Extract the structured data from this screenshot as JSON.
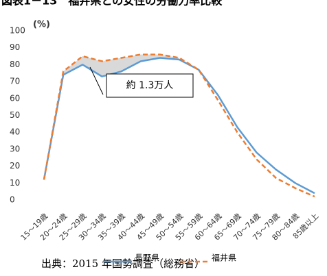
{
  "chart_data": {
    "type": "line",
    "title": "図表1－13　福井県との女性の労働力率比較",
    "y_label": "(%)",
    "source": "出典：2015 年国勢調査（総務省）",
    "annotation": "約 1.3万人",
    "categories": [
      "15～19歳",
      "20～24歳",
      "25～29歳",
      "30～34歳",
      "35～39歳",
      "40～44歳",
      "45～49歳",
      "50～54歳",
      "55～59歳",
      "60～64歳",
      "65～69歳",
      "70～74歳",
      "75～79歳",
      "80～84歳",
      "85歳以上"
    ],
    "series": [
      {
        "name": "長野県",
        "color": "#5b9bd5",
        "dash": false,
        "values": [
          12,
          74,
          80,
          73,
          76,
          82,
          84,
          83,
          77,
          62,
          43,
          28,
          18,
          10,
          4
        ]
      },
      {
        "name": "福井県",
        "color": "#ed7d31",
        "dash": true,
        "values": [
          12,
          76,
          85,
          82,
          84,
          86,
          86,
          84,
          77,
          59,
          40,
          24,
          13,
          7,
          2
        ]
      }
    ],
    "ylim": [
      0,
      100
    ],
    "yticks": [
      0,
      10,
      20,
      30,
      40,
      50,
      60,
      70,
      80,
      90,
      100
    ],
    "grid": false
  }
}
